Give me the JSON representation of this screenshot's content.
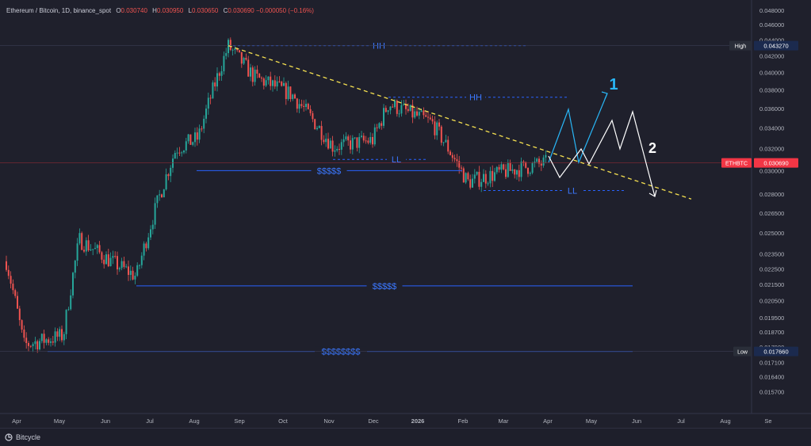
{
  "legend": {
    "title": "Ethereum / Bitcoin, 1D, binance_spot",
    "o_label": "O",
    "o": "0.030740",
    "h_label": "H",
    "h": "0.030950",
    "l_label": "L",
    "l": "0.030650",
    "c_label": "C",
    "c": "0.030690",
    "chg": "−0.000050 (−0.16%)"
  },
  "brand": "Bitcycle",
  "colors": {
    "background": "#1f202c",
    "up": "#26a69a",
    "down": "#ef5350",
    "level_line": "#2962ff",
    "level_text": "#3b78ff",
    "trendline": "#f5e050",
    "projection_1": "#29b6f6",
    "projection_2": "#ffffff",
    "price_tag": "#f23645",
    "hilo_tag": "#1b2a4e"
  },
  "chart_data": {
    "type": "candlestick",
    "title": "Ethereum / Bitcoin, 1D, binance_spot",
    "y_scale": "log",
    "ylim": [
      0.015,
      0.049
    ],
    "y_ticks": [
      "0.048000",
      "0.046000",
      "0.044000",
      "0.042000",
      "0.040000",
      "0.038000",
      "0.036000",
      "0.034000",
      "0.032000",
      "0.030000",
      "0.028000",
      "0.026500",
      "0.025000",
      "0.023500",
      "0.022500",
      "0.021500",
      "0.020500",
      "0.019500",
      "0.018700",
      "0.017900",
      "0.017100",
      "0.016400",
      "0.015700"
    ],
    "x_ticks": [
      "Apr",
      "May",
      "Jun",
      "Jul",
      "Aug",
      "Sep",
      "Oct",
      "Nov",
      "Dec",
      "2026",
      "Feb",
      "Mar",
      "Apr",
      "May",
      "Jun",
      "Jul",
      "Aug",
      "Se"
    ],
    "price_tags": [
      {
        "label": "High",
        "value": "0.043270"
      },
      {
        "label": "ETHBTC",
        "value": "0.030690"
      },
      {
        "label": "Low",
        "value": "0.017660"
      }
    ],
    "anchors": [
      {
        "month": "Apr 2025",
        "close": 0.023
      },
      {
        "month": "Apr 2025 low",
        "close": 0.018
      },
      {
        "month": "late Apr 2025",
        "close": 0.0185
      },
      {
        "month": "May 2025",
        "close": 0.0245
      },
      {
        "month": "Jun 2025",
        "close": 0.023
      },
      {
        "month": "late Jun 2025",
        "close": 0.022
      },
      {
        "month": "Jul 2025",
        "close": 0.032
      },
      {
        "month": "Aug 2025",
        "close": 0.033
      },
      {
        "month": "late Aug 2025",
        "close": 0.0432
      },
      {
        "month": "Sep 2025",
        "close": 0.0395
      },
      {
        "month": "Oct 2025",
        "close": 0.0375
      },
      {
        "month": "Nov 2025",
        "close": 0.0322
      },
      {
        "month": "Dec 2025",
        "close": 0.0328
      },
      {
        "month": "Dec 2025 peak",
        "close": 0.0365
      },
      {
        "month": "Jan 2026",
        "close": 0.0345
      },
      {
        "month": "Feb 2026",
        "close": 0.029
      },
      {
        "month": "Mar 2026",
        "close": 0.0298
      },
      {
        "month": "late Mar 2026",
        "close": 0.0307
      }
    ],
    "levels": [
      {
        "label": "HH",
        "value": 0.04327,
        "style": "dashed"
      },
      {
        "label": "HH",
        "value": 0.0372,
        "style": "dashed"
      },
      {
        "label": "LL",
        "value": 0.031,
        "style": "dashed"
      },
      {
        "label": "$$$$$",
        "value": 0.03,
        "style": "solid"
      },
      {
        "label": "LL",
        "value": 0.0283,
        "style": "dashed"
      },
      {
        "label": "$$$$$",
        "value": 0.0214,
        "style": "solid"
      },
      {
        "label": "$$$$$$$$",
        "value": 0.01766,
        "style": "solid"
      }
    ],
    "projections": [
      {
        "label": "1"
      },
      {
        "label": "2"
      }
    ]
  }
}
